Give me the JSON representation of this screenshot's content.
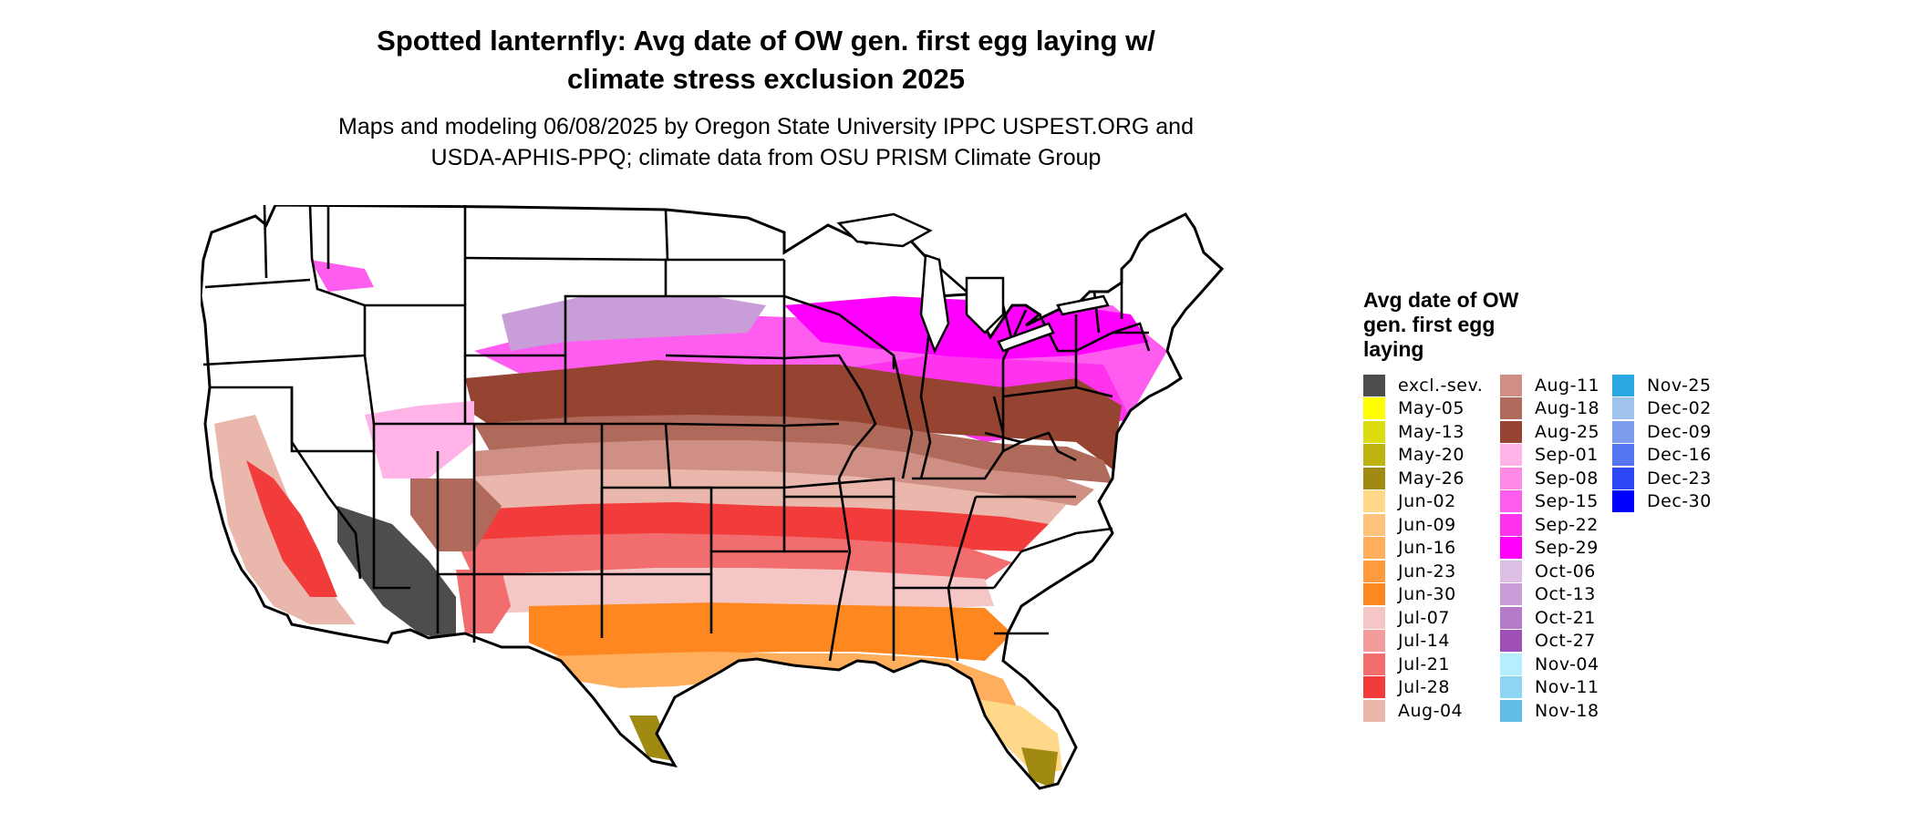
{
  "title": {
    "line1": "Spotted lanternfly: Avg date of OW gen. first egg laying w/",
    "line2": "climate stress exclusion 2025"
  },
  "subtitle": {
    "line1": "Maps and modeling 06/08/2025 by Oregon State University IPPC USPEST.ORG and",
    "line2": "USDA-APHIS-PPQ; climate data from OSU PRISM Climate Group"
  },
  "legend": {
    "title_lines": [
      "Avg date of OW",
      "gen. first egg",
      "laying"
    ],
    "columns": [
      [
        {
          "label": "excl.-sev.",
          "color": "#4d4d4d"
        },
        {
          "label": "May-05",
          "color": "#ffff00"
        },
        {
          "label": "May-13",
          "color": "#dcdc0f"
        },
        {
          "label": "May-20",
          "color": "#bfb30f"
        },
        {
          "label": "May-26",
          "color": "#a08a12"
        },
        {
          "label": "Jun-02",
          "color": "#ffd88a"
        },
        {
          "label": "Jun-09",
          "color": "#ffc27a"
        },
        {
          "label": "Jun-16",
          "color": "#ffae5e"
        },
        {
          "label": "Jun-23",
          "color": "#ff9a3d"
        },
        {
          "label": "Jun-30",
          "color": "#ff871f"
        },
        {
          "label": "Jul-07",
          "color": "#f5c6c6"
        },
        {
          "label": "Jul-14",
          "color": "#f49b9b"
        },
        {
          "label": "Jul-21",
          "color": "#f26d6d"
        },
        {
          "label": "Jul-28",
          "color": "#f23c3c"
        },
        {
          "label": "Aug-04",
          "color": "#e9b7ab"
        }
      ],
      [
        {
          "label": "Aug-11",
          "color": "#cf8f84"
        },
        {
          "label": "Aug-18",
          "color": "#b06a5b"
        },
        {
          "label": "Aug-25",
          "color": "#954432"
        },
        {
          "label": "Sep-01",
          "color": "#ffb3e6"
        },
        {
          "label": "Sep-08",
          "color": "#ff8ae6"
        },
        {
          "label": "Sep-15",
          "color": "#ff5cf0"
        },
        {
          "label": "Sep-22",
          "color": "#ff33ee"
        },
        {
          "label": "Sep-29",
          "color": "#ff00ff"
        },
        {
          "label": "Oct-06",
          "color": "#ddbfe6"
        },
        {
          "label": "Oct-13",
          "color": "#c99dd8"
        },
        {
          "label": "Oct-21",
          "color": "#b57ac9"
        },
        {
          "label": "Oct-27",
          "color": "#9f4fb8"
        },
        {
          "label": "Nov-04",
          "color": "#b5eeff"
        },
        {
          "label": "Nov-11",
          "color": "#8cd6f2"
        },
        {
          "label": "Nov-18",
          "color": "#5fbde6"
        }
      ],
      [
        {
          "label": "Nov-25",
          "color": "#2aa7e0"
        },
        {
          "label": "Dec-02",
          "color": "#9fc3ec"
        },
        {
          "label": "Dec-09",
          "color": "#7d9cee"
        },
        {
          "label": "Dec-16",
          "color": "#5574f0"
        },
        {
          "label": "Dec-23",
          "color": "#2c47f5"
        },
        {
          "label": "Dec-30",
          "color": "#0000ff"
        }
      ]
    ]
  }
}
